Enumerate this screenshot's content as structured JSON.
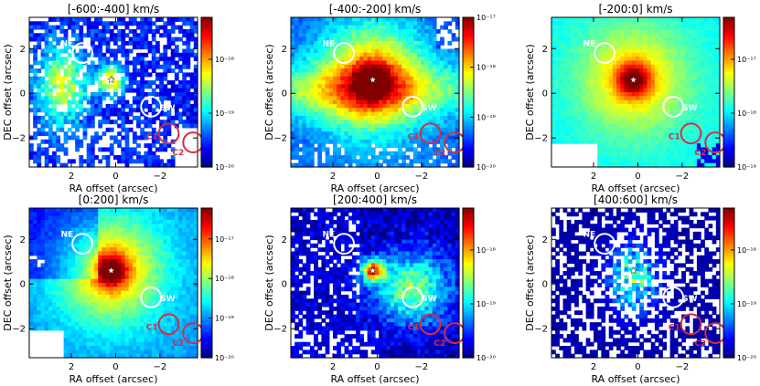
{
  "chart_data": [
    {
      "type": "heatmap",
      "title": "[-600:-400] km/s",
      "xlabel": "RA offset (arcsec)",
      "ylabel": "DEC offset (arcsec)",
      "xlim": [
        3.9,
        -3.7
      ],
      "ylim": [
        -3.3,
        3.4
      ],
      "xticks": [
        "2",
        "0",
        "−2"
      ],
      "yticks": [
        "2",
        "0",
        "−2"
      ],
      "colorbar": {
        "scale": "log",
        "vmin": 1e-20,
        "vmax": 6e-18,
        "ticks": [
          "10⁻¹⁸",
          "10⁻¹⁹",
          "10⁻²⁰"
        ]
      },
      "regions": [
        {
          "label": "NE",
          "x": 1.5,
          "y": 1.8,
          "r": 0.45,
          "color": "#ffffff"
        },
        {
          "label": "SW",
          "x": -1.6,
          "y": -0.6,
          "r": 0.45,
          "color": "#ffffff"
        },
        {
          "label": "C1",
          "x": -2.4,
          "y": -1.8,
          "r": 0.45,
          "color": "#d62d43"
        },
        {
          "label": "C2",
          "x": -3.5,
          "y": -2.2,
          "r": 0.45,
          "color": "#d62d43"
        }
      ],
      "nucleus": {
        "x": 0.2,
        "y": 0.6,
        "marker": "star"
      }
    },
    {
      "type": "heatmap",
      "title": "[-400:-200] km/s",
      "xlabel": "RA offset (arcsec)",
      "ylabel": "DEC offset (arcsec)",
      "xlim": [
        3.9,
        -3.7
      ],
      "ylim": [
        -3.3,
        3.4
      ],
      "xticks": [
        "2",
        "0",
        "−2"
      ],
      "yticks": [
        "2",
        "0",
        "−2"
      ],
      "colorbar": {
        "scale": "log",
        "vmin": 1e-20,
        "vmax": 1e-17,
        "ticks": [
          "10⁻¹⁷",
          "10⁻¹⁸",
          "10⁻¹⁹",
          "10⁻²⁰"
        ]
      },
      "regions": [
        {
          "label": "NE",
          "x": 1.5,
          "y": 1.8,
          "r": 0.45,
          "color": "#ffffff"
        },
        {
          "label": "SW",
          "x": -1.6,
          "y": -0.6,
          "r": 0.45,
          "color": "#ffffff"
        },
        {
          "label": "C1",
          "x": -2.4,
          "y": -1.8,
          "r": 0.45,
          "color": "#d62d43"
        },
        {
          "label": "C2",
          "x": -3.5,
          "y": -2.2,
          "r": 0.45,
          "color": "#d62d43"
        }
      ],
      "nucleus": {
        "x": 0.2,
        "y": 0.6,
        "marker": "star"
      }
    },
    {
      "type": "heatmap",
      "title": "[-200:0] km/s",
      "xlabel": "RA offset (arcsec)",
      "ylabel": "DEC offset (arcsec)",
      "xlim": [
        3.9,
        -3.7
      ],
      "ylim": [
        -3.3,
        3.4
      ],
      "xticks": [
        "2",
        "0",
        "−2"
      ],
      "yticks": [
        "2",
        "0",
        "−2"
      ],
      "colorbar": {
        "scale": "log",
        "vmin": 1e-19,
        "vmax": 6e-17,
        "ticks": [
          "10⁻¹⁷",
          "10⁻¹⁸",
          "10⁻¹⁹"
        ]
      },
      "regions": [
        {
          "label": "NE",
          "x": 1.5,
          "y": 1.8,
          "r": 0.45,
          "color": "#ffffff"
        },
        {
          "label": "SW",
          "x": -1.6,
          "y": -0.6,
          "r": 0.45,
          "color": "#ffffff"
        },
        {
          "label": "C1",
          "x": -2.4,
          "y": -1.8,
          "r": 0.45,
          "color": "#d62d43"
        },
        {
          "label": "C2",
          "x": -3.5,
          "y": -2.2,
          "r": 0.45,
          "color": "#d62d43"
        }
      ],
      "nucleus": {
        "x": 0.2,
        "y": 0.6,
        "marker": "star"
      }
    },
    {
      "type": "heatmap",
      "title": "[0:200] km/s",
      "xlabel": "RA offset (arcsec)",
      "ylabel": "DEC offset (arcsec)",
      "xlim": [
        3.9,
        -3.7
      ],
      "ylim": [
        -3.3,
        3.4
      ],
      "xticks": [
        "2",
        "0",
        "−2"
      ],
      "yticks": [
        "2",
        "0",
        "−2"
      ],
      "colorbar": {
        "scale": "log",
        "vmin": 1e-20,
        "vmax": 6e-17,
        "ticks": [
          "10⁻¹⁷",
          "10⁻¹⁸",
          "10⁻¹⁹",
          "10⁻²⁰"
        ]
      },
      "regions": [
        {
          "label": "NE",
          "x": 1.5,
          "y": 1.8,
          "r": 0.45,
          "color": "#ffffff"
        },
        {
          "label": "SW",
          "x": -1.6,
          "y": -0.6,
          "r": 0.45,
          "color": "#ffffff"
        },
        {
          "label": "C1",
          "x": -2.4,
          "y": -1.8,
          "r": 0.45,
          "color": "#d62d43"
        },
        {
          "label": "C2",
          "x": -3.5,
          "y": -2.2,
          "r": 0.45,
          "color": "#d62d43"
        }
      ],
      "nucleus": {
        "x": 0.2,
        "y": 0.6,
        "marker": "star"
      }
    },
    {
      "type": "heatmap",
      "title": "[200:400] km/s",
      "xlabel": "RA offset (arcsec)",
      "ylabel": "DEC offset (arcsec)",
      "xlim": [
        3.9,
        -3.7
      ],
      "ylim": [
        -3.3,
        3.4
      ],
      "xticks": [
        "2",
        "0",
        "−2"
      ],
      "yticks": [
        "2",
        "0",
        "−2"
      ],
      "colorbar": {
        "scale": "log",
        "vmin": 1e-20,
        "vmax": 6e-18,
        "ticks": [
          "10⁻¹⁸",
          "10⁻¹⁹",
          "10⁻²⁰"
        ]
      },
      "regions": [
        {
          "label": "NE",
          "x": 1.5,
          "y": 1.8,
          "r": 0.45,
          "color": "#ffffff"
        },
        {
          "label": "SW",
          "x": -1.6,
          "y": -0.6,
          "r": 0.45,
          "color": "#ffffff"
        },
        {
          "label": "C1",
          "x": -2.4,
          "y": -1.8,
          "r": 0.45,
          "color": "#d62d43"
        },
        {
          "label": "C2",
          "x": -3.5,
          "y": -2.2,
          "r": 0.45,
          "color": "#d62d43"
        }
      ],
      "nucleus": {
        "x": 0.2,
        "y": 0.6,
        "marker": "star"
      }
    },
    {
      "type": "heatmap",
      "title": "[400:600] km/s",
      "xlabel": "RA offset (arcsec)",
      "ylabel": "DEC offset (arcsec)",
      "xlim": [
        3.9,
        -3.7
      ],
      "ylim": [
        -3.3,
        3.4
      ],
      "xticks": [
        "2",
        "0",
        "−2"
      ],
      "yticks": [
        "2",
        "0",
        "−2"
      ],
      "colorbar": {
        "scale": "log",
        "vmin": 1e-20,
        "vmax": 6e-18,
        "ticks": [
          "10⁻¹⁸",
          "10⁻¹⁹",
          "10⁻²⁰"
        ]
      },
      "regions": [
        {
          "label": "NE",
          "x": 1.5,
          "y": 1.8,
          "r": 0.45,
          "color": "#ffffff"
        },
        {
          "label": "SW",
          "x": -1.6,
          "y": -0.6,
          "r": 0.45,
          "color": "#ffffff"
        },
        {
          "label": "C1",
          "x": -2.4,
          "y": -1.8,
          "r": 0.45,
          "color": "#d62d43"
        },
        {
          "label": "C2",
          "x": -3.5,
          "y": -2.2,
          "r": 0.45,
          "color": "#d62d43"
        }
      ],
      "nucleus": {
        "x": 0.2,
        "y": 0.6,
        "marker": "star"
      }
    }
  ],
  "colors": {
    "region_white": "#ffffff",
    "region_red": "#d62d43",
    "colormap": "jet"
  }
}
